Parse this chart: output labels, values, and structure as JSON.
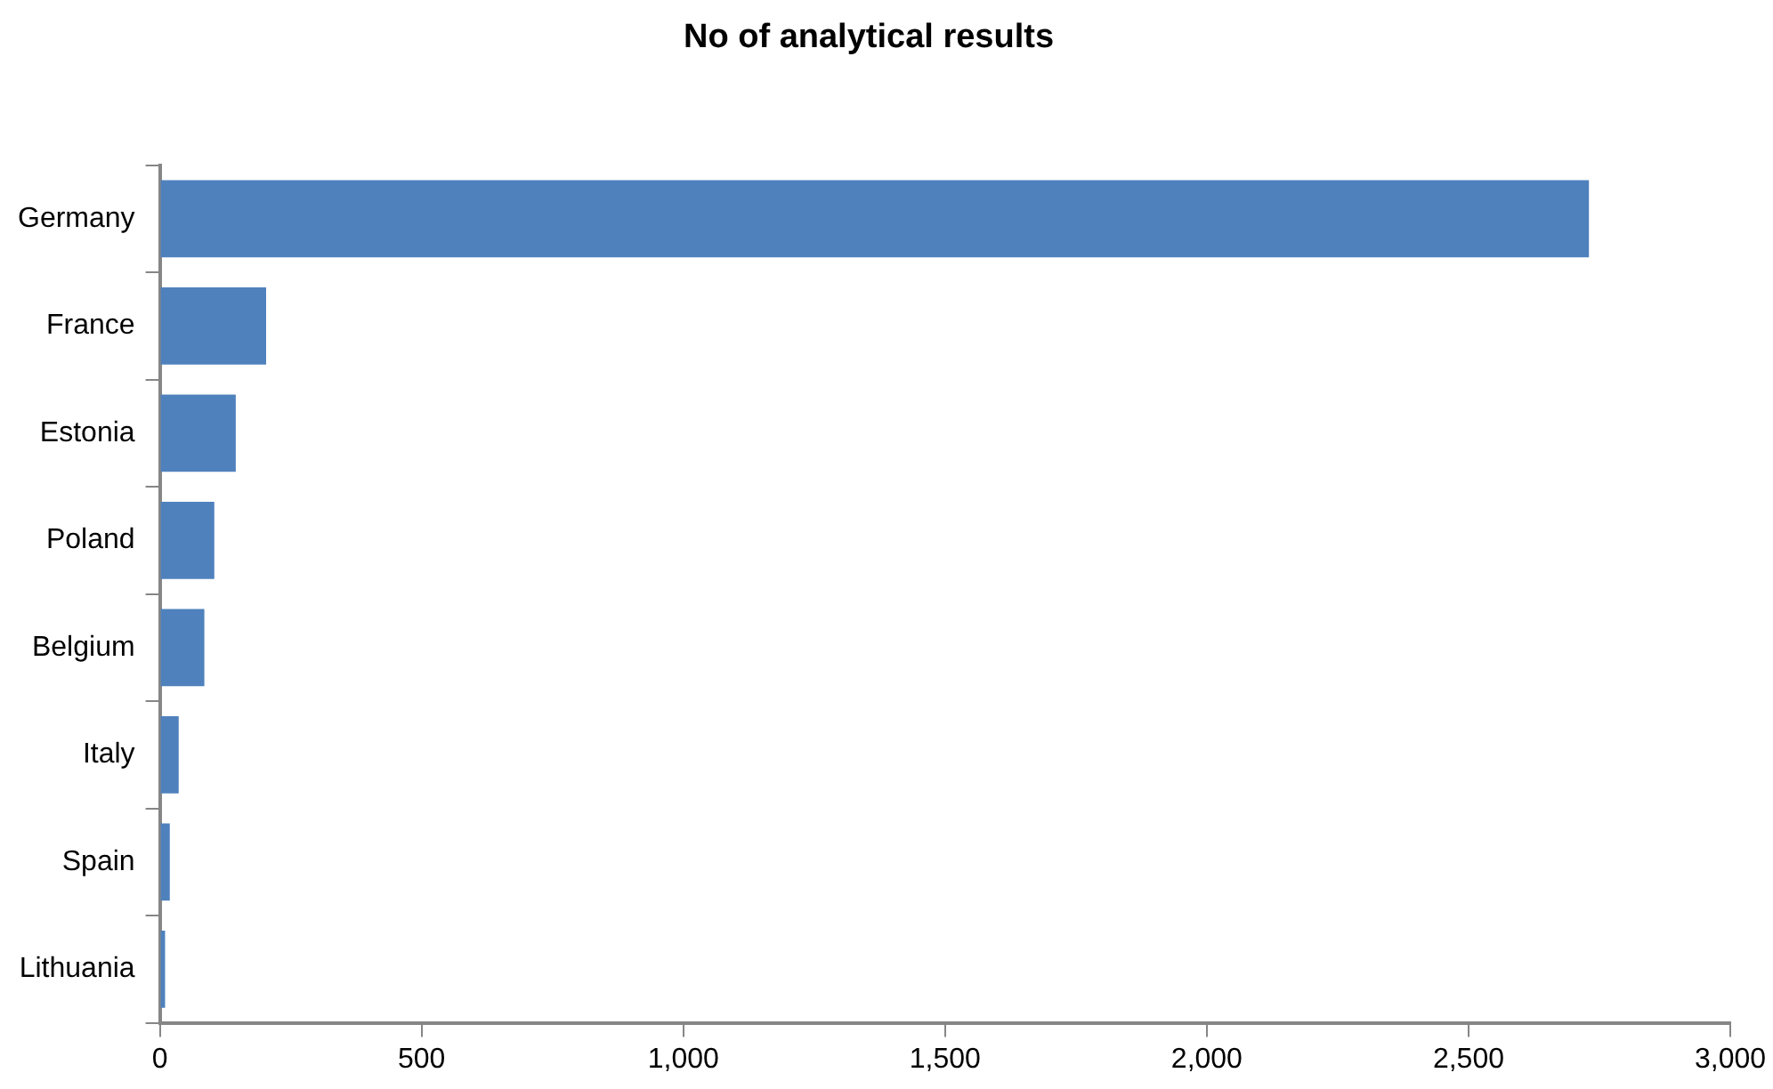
{
  "chart_data": {
    "type": "bar",
    "orientation": "horizontal",
    "title": "No of analytical results",
    "categories": [
      "Germany",
      "France",
      "Estonia",
      "Poland",
      "Belgium",
      "Italy",
      "Spain",
      "Lithuania"
    ],
    "values": [
      2730,
      203,
      145,
      104,
      85,
      36,
      19,
      10
    ],
    "color": "#4f81bd",
    "xlim": [
      0,
      3000
    ],
    "xticks": [
      {
        "value": 0,
        "label": "0"
      },
      {
        "value": 500,
        "label": "500"
      },
      {
        "value": 1000,
        "label": "1,000"
      },
      {
        "value": 1500,
        "label": "1,500"
      },
      {
        "value": 2000,
        "label": "2,000"
      },
      {
        "value": 2500,
        "label": "2,500"
      },
      {
        "value": 3000,
        "label": "3,000"
      }
    ],
    "grid": false,
    "legend": false
  }
}
